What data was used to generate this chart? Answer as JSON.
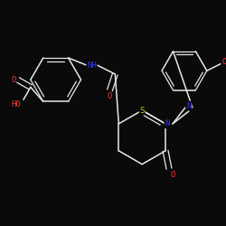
{
  "bg_color": "#0a0a0a",
  "bond_color": "#e8e8e8",
  "atom_colors": {
    "O": "#ff3333",
    "N": "#3333ff",
    "S": "#cccc00",
    "C": "#e8e8e8",
    "H": "#e8e8e8"
  },
  "figsize": [
    2.5,
    2.5
  ],
  "dpi": 100
}
